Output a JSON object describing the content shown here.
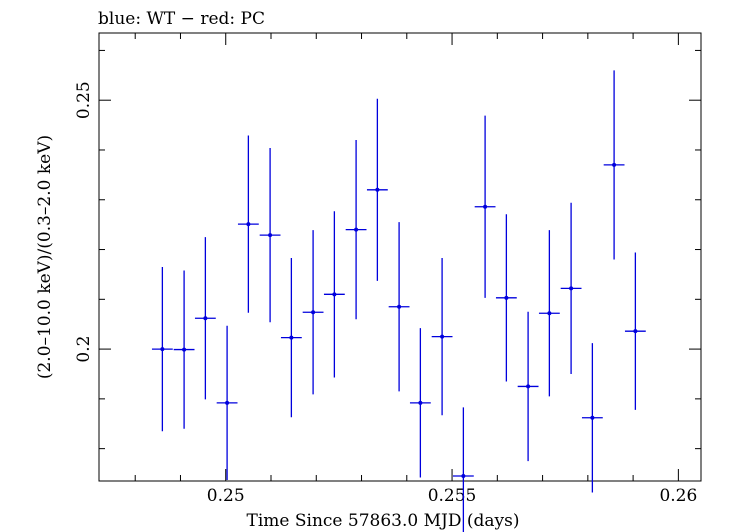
{
  "chart_data": {
    "type": "scatter",
    "title": "blue: WT − red: PC",
    "xlabel": "Time Since 57863.0 MJD (days)",
    "ylabel": "(2.0–10.0 keV)/(0.3–2.0 keV)",
    "xlim": [
      0.2472,
      0.2605
    ],
    "ylim": [
      0.1735,
      0.2635
    ],
    "x_ticks": [
      {
        "value": 0.25,
        "label": "0.25"
      },
      {
        "value": 0.255,
        "label": "0.255"
      },
      {
        "value": 0.26,
        "label": "0.26"
      }
    ],
    "y_ticks": [
      {
        "value": 0.2,
        "label": "0.2"
      },
      {
        "value": 0.25,
        "label": "0.25"
      }
    ],
    "grid": false,
    "series": [
      {
        "color": "#0000dd",
        "points": [
          {
            "x": 0.2486,
            "xerr": 0.00023,
            "y": 0.2,
            "yerr": 0.0165
          },
          {
            "x": 0.24908,
            "xerr": 0.00023,
            "y": 0.1999,
            "yerr": 0.0159
          },
          {
            "x": 0.24955,
            "xerr": 0.00023,
            "y": 0.2062,
            "yerr": 0.0163
          },
          {
            "x": 0.25003,
            "xerr": 0.00023,
            "y": 0.1892,
            "yerr": 0.0155
          },
          {
            "x": 0.2505,
            "xerr": 0.00023,
            "y": 0.2251,
            "yerr": 0.0178
          },
          {
            "x": 0.25098,
            "xerr": 0.00023,
            "y": 0.2229,
            "yerr": 0.0175
          },
          {
            "x": 0.25145,
            "xerr": 0.00023,
            "y": 0.2023,
            "yerr": 0.016
          },
          {
            "x": 0.25193,
            "xerr": 0.00023,
            "y": 0.2074,
            "yerr": 0.0165
          },
          {
            "x": 0.2524,
            "xerr": 0.00023,
            "y": 0.211,
            "yerr": 0.0167
          },
          {
            "x": 0.25288,
            "xerr": 0.00023,
            "y": 0.224,
            "yerr": 0.018
          },
          {
            "x": 0.25335,
            "xerr": 0.00023,
            "y": 0.232,
            "yerr": 0.0183
          },
          {
            "x": 0.25383,
            "xerr": 0.00023,
            "y": 0.2085,
            "yerr": 0.017
          },
          {
            "x": 0.2543,
            "xerr": 0.00023,
            "y": 0.1892,
            "yerr": 0.015
          },
          {
            "x": 0.25478,
            "xerr": 0.00023,
            "y": 0.2025,
            "yerr": 0.0158
          },
          {
            "x": 0.25525,
            "xerr": 0.00023,
            "y": 0.1745,
            "yerr": 0.0138
          },
          {
            "x": 0.25573,
            "xerr": 0.00023,
            "y": 0.2286,
            "yerr": 0.0183
          },
          {
            "x": 0.2562,
            "xerr": 0.00023,
            "y": 0.2103,
            "yerr": 0.0168
          },
          {
            "x": 0.25668,
            "xerr": 0.00023,
            "y": 0.1925,
            "yerr": 0.015
          },
          {
            "x": 0.25715,
            "xerr": 0.00023,
            "y": 0.2072,
            "yerr": 0.0167
          },
          {
            "x": 0.25763,
            "xerr": 0.00023,
            "y": 0.2122,
            "yerr": 0.0172
          },
          {
            "x": 0.2581,
            "xerr": 0.00023,
            "y": 0.1862,
            "yerr": 0.015
          },
          {
            "x": 0.25858,
            "xerr": 0.00023,
            "y": 0.237,
            "yerr": 0.019
          },
          {
            "x": 0.25905,
            "xerr": 0.00023,
            "y": 0.2036,
            "yerr": 0.0158
          }
        ]
      }
    ]
  }
}
